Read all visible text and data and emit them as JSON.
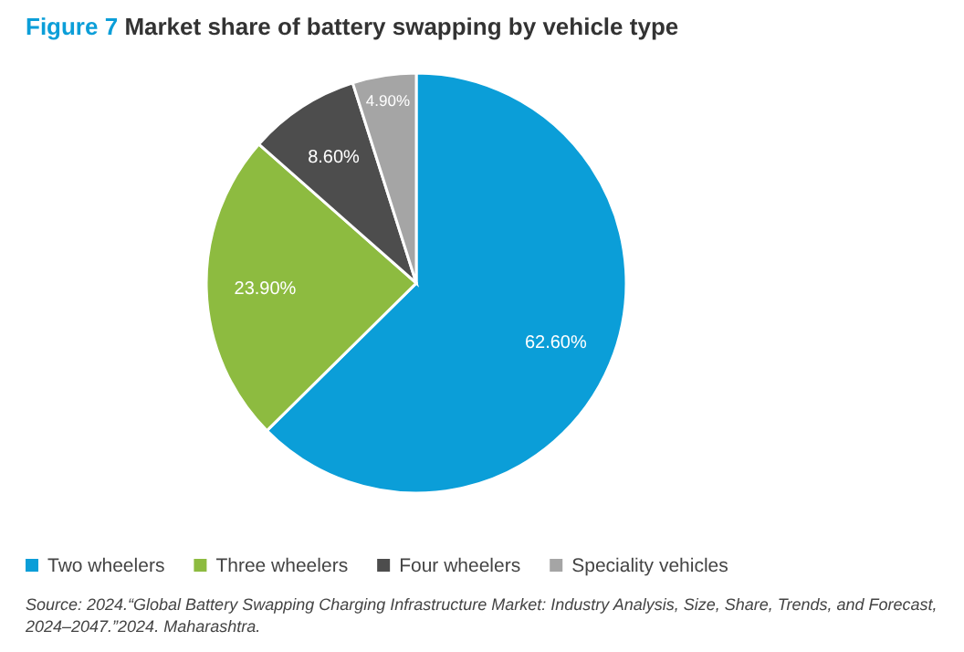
{
  "chart_data": {
    "type": "pie",
    "title": "Figure 7 Market share of battery swapping by vehicle type",
    "categories": [
      "Two wheelers",
      "Three wheelers",
      "Four wheelers",
      "Speciality vehicles"
    ],
    "values": [
      62.6,
      23.9,
      8.6,
      4.9
    ],
    "colors": [
      "#0b9ed8",
      "#8dbb40",
      "#4d4d4d",
      "#a5a5a5"
    ],
    "value_labels": [
      "62.60%",
      "23.90%",
      "8.60%",
      "4.90%"
    ],
    "legend": "bottom",
    "annotations": [
      "Source: 2024.“Global Battery Swapping Charging Infrastructure Market: Industry Analysis, Size, Share, Trends, and Forecast, 2024–2047.”2024. Maharashtra."
    ]
  }
}
